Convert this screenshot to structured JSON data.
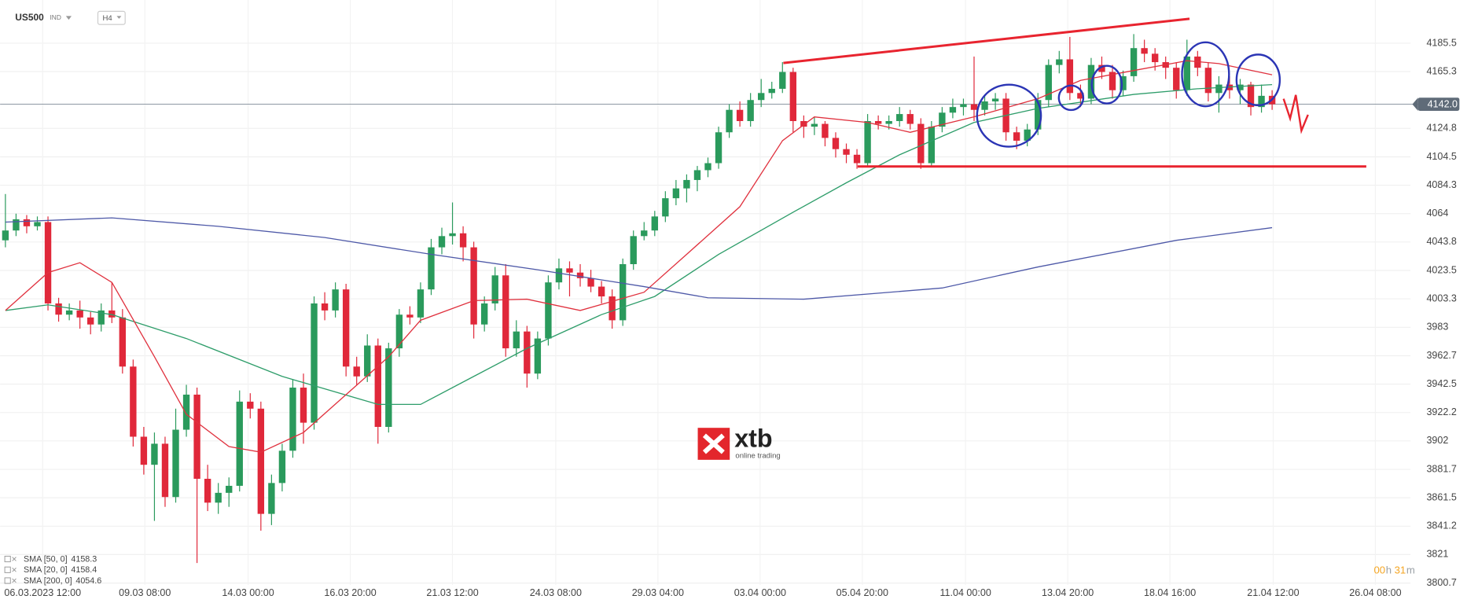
{
  "chart_data": {
    "type": "candlestick",
    "symbol": "US500",
    "market": "IND",
    "interval": "H4",
    "up_color": "#2a9a5c",
    "down_color": "#e0283a",
    "open": [
      4045,
      4052,
      4060,
      4055,
      4058,
      4000,
      3992,
      3995,
      3990,
      3985,
      3995,
      3990,
      3955,
      3905,
      3885,
      3900,
      3862,
      3910,
      3935,
      3875,
      3858,
      3865,
      3870,
      3930,
      3925,
      3850,
      3872,
      3895,
      3940,
      3915,
      4000,
      3995,
      4010,
      3955,
      3948,
      3970,
      3912,
      3968,
      3992,
      3990,
      4010,
      4040,
      4048,
      4050,
      4040,
      3985,
      4000,
      4020,
      3968,
      3980,
      3950,
      3975,
      4015,
      4025,
      4022,
      4018,
      4012,
      4005,
      3988,
      4028,
      4048,
      4052,
      4062,
      4075,
      4082,
      4088,
      4095,
      4100,
      4122,
      4138,
      4130,
      4145,
      4150,
      4153,
      4165,
      4130,
      4126,
      4128,
      4118,
      4110,
      4106,
      4100,
      4130,
      4128,
      4130,
      4135,
      4128,
      4100,
      4126,
      4136,
      4140,
      4142,
      4138,
      4144,
      4146,
      4122,
      4116,
      4124,
      4145,
      4170,
      4174,
      4150,
      4146,
      4170,
      4165,
      4152,
      4162,
      4182,
      4178,
      4172,
      4168,
      4152,
      4176,
      4168,
      4150,
      4156,
      4152,
      4156,
      4140,
      4148
    ],
    "high": [
      4078,
      4064,
      4063,
      4062,
      4062,
      4004,
      4000,
      4002,
      3994,
      4000,
      4015,
      3996,
      3960,
      3912,
      3908,
      3905,
      3925,
      3942,
      3940,
      3885,
      3872,
      3876,
      3938,
      3936,
      3930,
      3878,
      3900,
      3946,
      3950,
      4005,
      4008,
      4015,
      4014,
      3962,
      3978,
      3975,
      3972,
      3996,
      3998,
      4015,
      4046,
      4054,
      4072,
      4055,
      4044,
      4005,
      4026,
      4028,
      3988,
      3984,
      3980,
      4020,
      4032,
      4030,
      4028,
      4024,
      4016,
      4010,
      4032,
      4052,
      4058,
      4066,
      4080,
      4088,
      4092,
      4098,
      4104,
      4126,
      4142,
      4144,
      4150,
      4160,
      4158,
      4172,
      4168,
      4134,
      4133,
      4130,
      4122,
      4114,
      4110,
      4135,
      4134,
      4134,
      4140,
      4138,
      4132,
      4130,
      4140,
      4146,
      4146,
      4176,
      4148,
      4150,
      4150,
      4126,
      4128,
      4150,
      4174,
      4180,
      4190,
      4156,
      4175,
      4176,
      4170,
      4166,
      4192,
      4188,
      4182,
      4176,
      4172,
      4188,
      4180,
      4172,
      4162,
      4162,
      4160,
      4158,
      4156,
      4152
    ],
    "low": [
      4040,
      4048,
      4050,
      4052,
      3995,
      3987,
      3988,
      3982,
      3978,
      3980,
      3986,
      3950,
      3898,
      3878,
      3845,
      3855,
      3858,
      3905,
      3815,
      3852,
      3850,
      3855,
      3866,
      3918,
      3838,
      3842,
      3866,
      3890,
      3900,
      3910,
      3988,
      3990,
      3948,
      3942,
      3944,
      3900,
      3908,
      3962,
      3985,
      3986,
      4006,
      4035,
      4042,
      4030,
      3975,
      3980,
      3995,
      3962,
      3962,
      3940,
      3946,
      3970,
      4010,
      4005,
      4012,
      4008,
      4000,
      3982,
      3984,
      4024,
      4045,
      4048,
      4058,
      4070,
      4072,
      4080,
      4090,
      4096,
      4118,
      4126,
      4126,
      4140,
      4146,
      4150,
      4122,
      4118,
      4120,
      4112,
      4104,
      4100,
      4096,
      4098,
      4124,
      4124,
      4126,
      4124,
      4096,
      4098,
      4122,
      4132,
      4134,
      4130,
      4134,
      4138,
      4116,
      4110,
      4112,
      4120,
      4140,
      4164,
      4145,
      4140,
      4142,
      4160,
      4146,
      4148,
      4158,
      4172,
      4166,
      4160,
      4146,
      4148,
      4162,
      4144,
      4136,
      4146,
      4142,
      4134,
      4136,
      4138
    ],
    "close": [
      4052,
      4060,
      4055,
      4058,
      4000,
      3992,
      3995,
      3990,
      3985,
      3995,
      3990,
      3955,
      3905,
      3885,
      3900,
      3862,
      3910,
      3935,
      3875,
      3858,
      3865,
      3870,
      3930,
      3925,
      3850,
      3872,
      3895,
      3940,
      3915,
      4000,
      3995,
      4010,
      3955,
      3948,
      3970,
      3912,
      3968,
      3992,
      3990,
      4010,
      4040,
      4048,
      4050,
      4040,
      3985,
      4000,
      4020,
      3968,
      3980,
      3950,
      3975,
      4015,
      4025,
      4022,
      4018,
      4012,
      4005,
      3988,
      4028,
      4048,
      4052,
      4062,
      4075,
      4082,
      4088,
      4095,
      4100,
      4122,
      4138,
      4130,
      4145,
      4150,
      4153,
      4165,
      4130,
      4126,
      4128,
      4118,
      4110,
      4106,
      4100,
      4130,
      4128,
      4130,
      4135,
      4128,
      4100,
      4126,
      4136,
      4140,
      4142,
      4138,
      4144,
      4146,
      4122,
      4116,
      4124,
      4145,
      4170,
      4174,
      4150,
      4146,
      4170,
      4165,
      4152,
      4162,
      4182,
      4178,
      4172,
      4168,
      4152,
      4176,
      4168,
      4150,
      4156,
      4152,
      4156,
      4140,
      4148,
      4142
    ],
    "series": [
      {
        "name": "SMA [50, 0]",
        "last": 4158.3,
        "color": "#2e9d6a",
        "x": [
          0,
          4,
          10,
          17,
          26,
          35,
          39,
          44,
          49,
          56,
          61,
          67,
          74,
          79,
          84,
          91,
          97,
          106,
          112,
          119
        ],
        "values": [
          3995,
          3999,
          3992,
          3975,
          3948,
          3928,
          3928,
          3948,
          3968,
          3992,
          4005,
          4035,
          4065,
          4086,
          4106,
          4129,
          4139,
          4149,
          4153,
          4156
        ]
      },
      {
        "name": "SMA [20, 0]",
        "last": 4158.4,
        "color": "#e0313e",
        "x": [
          0,
          4,
          7,
          10,
          14,
          17,
          21,
          24,
          28,
          32,
          36,
          39,
          44,
          49,
          54,
          60,
          64,
          69,
          73,
          76,
          81,
          85,
          91,
          97,
          101,
          106,
          111,
          114,
          119
        ],
        "values": [
          3995,
          4022,
          4029,
          4015,
          3962,
          3921,
          3898,
          3894,
          3908,
          3935,
          3962,
          3988,
          4002,
          4003,
          3995,
          4008,
          4035,
          4069,
          4116,
          4133,
          4129,
          4122,
          4133,
          4146,
          4159,
          4166,
          4173,
          4171,
          4163
        ]
      },
      {
        "name": "SMA [200, 0]",
        "last": 4054.6,
        "color": "#4e59a8",
        "x": [
          0,
          10,
          20,
          30,
          40,
          50,
          60,
          66,
          75,
          88,
          97,
          110,
          119
        ],
        "values": [
          4058,
          4061,
          4055,
          4047,
          4035,
          4024,
          4012,
          4004,
          4003,
          4011,
          4026,
          4045,
          4054
        ]
      }
    ],
    "xlim": [
      -0.5,
      132
    ],
    "xticks": [
      {
        "value": 3.5,
        "label": "06.03.2023 12:00"
      },
      {
        "value": 13.1,
        "label": "09.03 08:00"
      },
      {
        "value": 22.8,
        "label": "14.03 00:00"
      },
      {
        "value": 32.4,
        "label": "16.03 20:00"
      },
      {
        "value": 42.0,
        "label": "21.03 12:00"
      },
      {
        "value": 51.7,
        "label": "24.03 08:00"
      },
      {
        "value": 61.3,
        "label": "29.03 04:00"
      },
      {
        "value": 70.9,
        "label": "03.04 00:00"
      },
      {
        "value": 80.5,
        "label": "05.04 20:00"
      },
      {
        "value": 90.2,
        "label": "11.04 00:00"
      },
      {
        "value": 99.8,
        "label": "13.04 20:00"
      },
      {
        "value": 109.4,
        "label": "18.04 16:00"
      },
      {
        "value": 119.1,
        "label": "21.04 12:00"
      },
      {
        "value": 128.7,
        "label": "26.04 08:00"
      }
    ],
    "ylim": [
      3799.4,
      4216.3
    ],
    "yticks": [
      4185.5,
      4165.3,
      4124.8,
      4104.5,
      4084.3,
      4064.0,
      4043.8,
      4023.5,
      4003.3,
      3983.0,
      3962.7,
      3942.5,
      3922.2,
      3902.0,
      3881.7,
      3861.5,
      3841.2,
      3821.0,
      3800.7
    ],
    "price_line": {
      "value": 4142,
      "label": "4142.0"
    },
    "grid": true,
    "countdown": [
      "00",
      "h",
      "31",
      "m"
    ]
  },
  "logo": {
    "name": "xtb",
    "tagline": "online trading"
  }
}
